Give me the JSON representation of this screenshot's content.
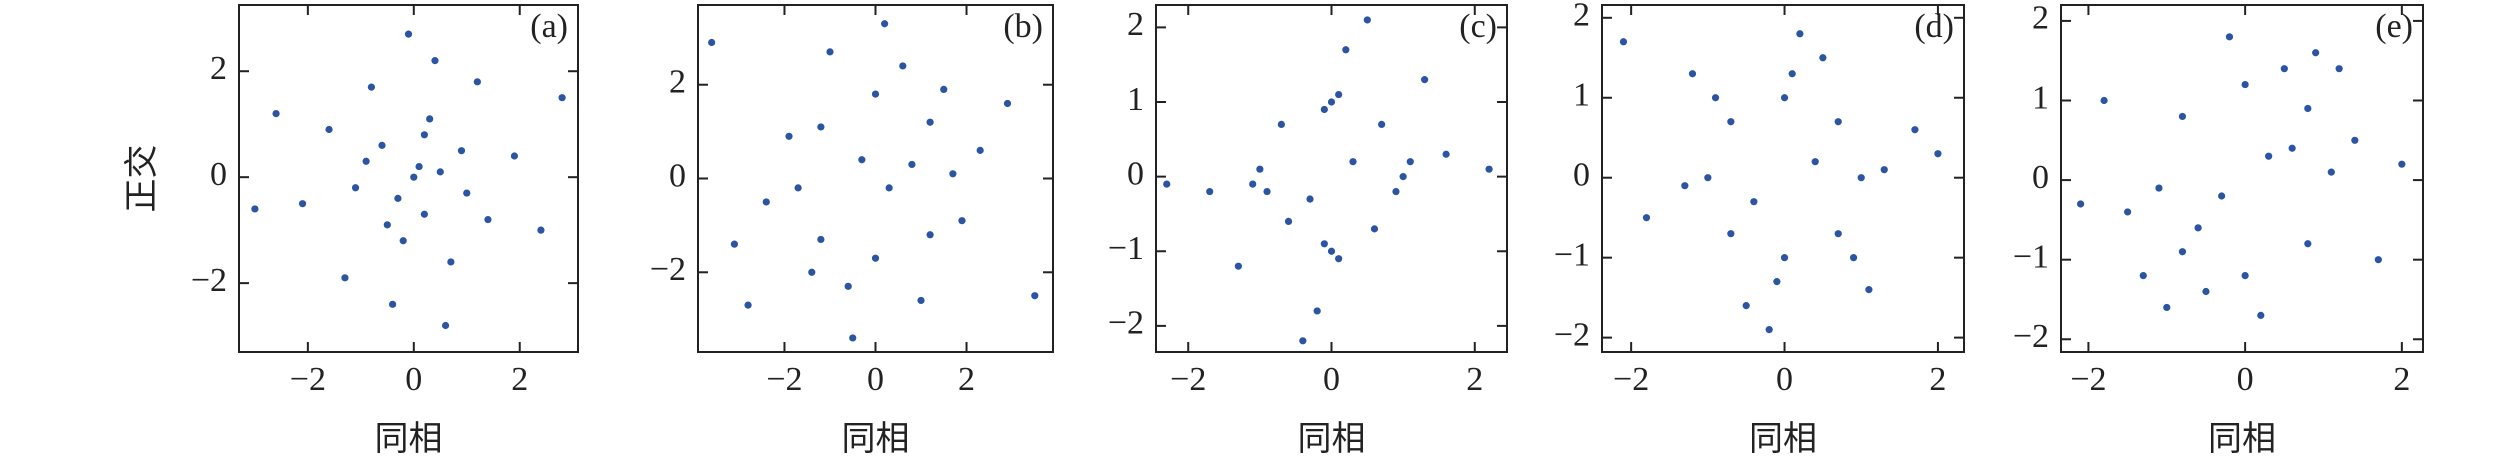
{
  "chart_data": [
    {
      "type": "scatter",
      "label": "(a)",
      "x_label": "同相",
      "y_label": "正交",
      "color": "#2b55a3",
      "x": [
        0.1,
        -0.3,
        0.5,
        -0.6,
        0.2,
        0.9,
        -1.1,
        0.3,
        -0.2,
        1.4,
        -1.6,
        0.7,
        -0.8,
        0.0,
        1.9,
        -2.1,
        0.4,
        -0.4,
        1.2,
        -1.3,
        2.4,
        -2.6,
        0.6,
        -0.1,
        1.0,
        -0.9,
        0.2,
        -0.5,
        2.8,
        -3.0
      ],
      "y": [
        0.2,
        -0.4,
        0.1,
        0.6,
        -0.7,
        0.5,
        -0.2,
        1.1,
        -1.2,
        -0.8,
        0.9,
        -1.6,
        1.7,
        0.0,
        0.4,
        -0.5,
        2.2,
        -2.4,
        1.8,
        -1.9,
        -1.0,
        1.2,
        -2.8,
        2.7,
        -0.3,
        0.3,
        0.8,
        -0.9,
        1.5,
        -0.6
      ],
      "xlim": [
        -3.3,
        3.1
      ],
      "ylim": [
        -3.3,
        3.25
      ],
      "xticks": [
        {
          "value": -2,
          "label": "−2"
        },
        0,
        2
      ],
      "yticks": [
        {
          "value": -2,
          "label": "−2"
        },
        0,
        2
      ]
    },
    {
      "type": "scatter",
      "label": "(b)",
      "x_label": "同相",
      "color": "#2b55a3",
      "x": [
        1.7,
        1.2,
        0,
        -1.2,
        -1.7,
        -1.2,
        0,
        1.2,
        2.3,
        -2.4,
        0.6,
        -0.6,
        1.9,
        -1.9,
        0.3,
        -0.3,
        2.9,
        -3.1,
        1.0,
        -1.0,
        0.2,
        -0.5,
        3.5,
        -3.6,
        1.5,
        -1.4,
        0.8,
        -2.8
      ],
      "y": [
        0.1,
        1.2,
        1.8,
        1.1,
        -0.2,
        -1.3,
        -1.7,
        -1.2,
        0.6,
        -0.5,
        2.4,
        -2.3,
        -0.9,
        0.9,
        -0.2,
        0.4,
        1.6,
        -1.4,
        -2.6,
        2.7,
        3.3,
        -3.4,
        -2.5,
        2.9,
        1.9,
        -2.0,
        0.3,
        -2.7
      ],
      "xlim": [
        -3.9,
        3.9
      ],
      "ylim": [
        -3.7,
        3.7
      ],
      "xticks": [
        {
          "value": -2,
          "label": "−2"
        },
        0,
        2
      ],
      "yticks": [
        {
          "value": -2,
          "label": "−2"
        },
        0,
        2
      ]
    },
    {
      "type": "scatter",
      "label": "(c)",
      "x_label": "同相",
      "color": "#2b55a3",
      "x": [
        1.0,
        1.1,
        0.9,
        -1.0,
        -1.1,
        -0.9,
        0.0,
        0.1,
        -0.1,
        0.0,
        0.1,
        -0.1,
        0.7,
        -0.7,
        0.6,
        -0.6,
        0.3,
        -0.3,
        1.6,
        -1.7,
        0.2,
        -0.2,
        1.3,
        -1.3,
        2.2,
        -2.3,
        0.5,
        -0.4
      ],
      "y": [
        0.0,
        0.2,
        -0.2,
        0.1,
        -0.1,
        -0.2,
        1.0,
        1.1,
        0.9,
        -1.0,
        -1.1,
        -0.9,
        0.7,
        0.7,
        -0.7,
        -0.6,
        0.2,
        -0.3,
        0.3,
        -0.2,
        1.7,
        -1.8,
        1.3,
        -1.2,
        0.1,
        -0.1,
        2.1,
        -2.2
      ],
      "xlim": [
        -2.45,
        2.45
      ],
      "ylim": [
        -2.35,
        2.3
      ],
      "xticks": [
        {
          "value": -2,
          "label": "−2"
        },
        0,
        2
      ],
      "yticks": [
        {
          "value": -2,
          "label": "−2"
        },
        {
          "value": -1,
          "label": "−1"
        },
        0,
        1,
        2
      ]
    },
    {
      "type": "scatter",
      "label": "(d)",
      "x_label": "同相",
      "color": "#2b55a3",
      "x": [
        1.0,
        0.7,
        0,
        -0.7,
        -1.0,
        -0.7,
        0,
        0.7,
        1.3,
        -1.3,
        0.1,
        -0.1,
        0.9,
        -0.9,
        0.4,
        -0.4,
        1.7,
        -1.8,
        0.2,
        -0.2,
        0.5,
        -0.5,
        1.1,
        -1.2,
        2.0,
        -2.1
      ],
      "y": [
        0,
        0.7,
        1.0,
        0.7,
        0,
        -0.7,
        -1.0,
        -0.7,
        0.1,
        -0.1,
        1.3,
        -1.3,
        -1.0,
        1.0,
        0.2,
        -0.3,
        0.6,
        -0.5,
        1.8,
        -1.9,
        1.5,
        -1.6,
        -1.4,
        1.3,
        0.3,
        1.7
      ],
      "xlim": [
        -2.38,
        2.34
      ],
      "ylim": [
        -2.18,
        2.16
      ],
      "xticks": [
        {
          "value": -2,
          "label": "−2"
        },
        0,
        2
      ],
      "yticks": [
        {
          "value": -2,
          "label": "−2"
        },
        {
          "value": -1,
          "label": "−1"
        },
        0,
        1,
        2
      ]
    },
    {
      "type": "scatter",
      "label": "(e)",
      "x_label": "同相",
      "color": "#2b55a3",
      "x": [
        1.1,
        0.8,
        0,
        -0.8,
        -1.1,
        -0.8,
        0,
        0.8,
        1.4,
        -1.5,
        0.5,
        -0.5,
        0.3,
        -0.3,
        1.7,
        -1.8,
        0.9,
        -1.0,
        0.2,
        -0.2,
        1.2,
        -1.3,
        2.0,
        -2.1,
        0.6,
        -0.6
      ],
      "y": [
        0.1,
        0.9,
        1.2,
        0.8,
        -0.1,
        -0.9,
        -1.2,
        -0.8,
        0.5,
        -0.4,
        1.4,
        -1.4,
        0.3,
        -0.2,
        -1.0,
        1.0,
        1.6,
        -1.6,
        -1.7,
        1.8,
        1.4,
        -1.2,
        0.2,
        -0.3,
        0.4,
        -0.6
      ],
      "xlim": [
        -2.35,
        2.27
      ],
      "ylim": [
        -2.16,
        2.2
      ],
      "xticks": [
        {
          "value": -2,
          "label": "−2"
        },
        0,
        2
      ],
      "yticks": [
        {
          "value": -2,
          "label": "−2"
        },
        {
          "value": -1,
          "label": "−1"
        },
        0,
        1,
        2
      ]
    }
  ]
}
